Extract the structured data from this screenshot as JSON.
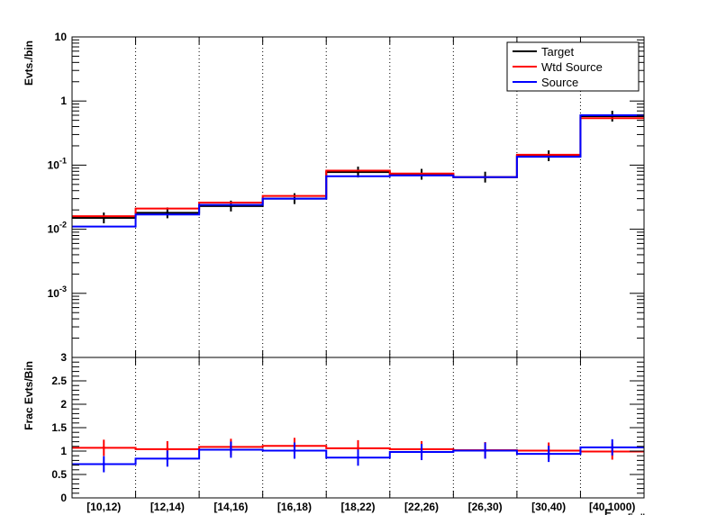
{
  "chart_data": [
    {
      "type": "histogram",
      "ylabel": "Evts./bin",
      "yscale": "log",
      "ylim": [
        0.0001,
        10
      ],
      "y_ticks": [
        {
          "v": 10,
          "t": "10"
        },
        {
          "v": 1,
          "t": "1"
        },
        {
          "v": 0.1,
          "t": "10<sup>-1</sup>"
        },
        {
          "v": 0.01,
          "t": "10<sup>-2</sup>"
        },
        {
          "v": 0.001,
          "t": "10<sup>-3</sup>"
        }
      ],
      "grid_x": true,
      "legend_position": "top-right",
      "categories": [
        "[10,12)",
        "[12,14)",
        "[14,16)",
        "[16,18)",
        "[18,22)",
        "[22,26)",
        "[26,30)",
        "[30,40)",
        "[40,1000)"
      ],
      "series": [
        {
          "name": "Target",
          "color": "#000000",
          "values": [
            0.015,
            0.018,
            0.023,
            0.03,
            0.078,
            0.072,
            0.065,
            0.14,
            0.58
          ],
          "errors": true
        },
        {
          "name": "Wtd Source",
          "color": "#ff0000",
          "values": [
            0.016,
            0.021,
            0.026,
            0.033,
            0.082,
            0.074,
            0.065,
            0.145,
            0.54
          ]
        },
        {
          "name": "Source",
          "color": "#0000ff",
          "values": [
            0.011,
            0.017,
            0.024,
            0.03,
            0.067,
            0.069,
            0.065,
            0.135,
            0.6
          ]
        }
      ]
    },
    {
      "type": "histogram",
      "ylabel": "Frac Evts/Bin",
      "ylim": [
        0,
        3
      ],
      "y_ticks": [
        {
          "v": 0,
          "t": "0"
        },
        {
          "v": 0.5,
          "t": "0.5"
        },
        {
          "v": 1,
          "t": "1"
        },
        {
          "v": 1.5,
          "t": "1.5"
        },
        {
          "v": 2,
          "t": "2"
        },
        {
          "v": 2.5,
          "t": "2.5"
        },
        {
          "v": 3,
          "t": "3"
        }
      ],
      "grid_x": true,
      "xlabel": "E_maxFrell",
      "categories": [
        "[10,12)",
        "[12,14)",
        "[14,16)",
        "[16,18)",
        "[18,22)",
        "[22,26)",
        "[26,30)",
        "[30,40)",
        "[40,1000)"
      ],
      "series": [
        {
          "name": "Wtd Source",
          "color": "#ff0000",
          "values": [
            1.07,
            1.04,
            1.09,
            1.11,
            1.06,
            1.04,
            1.02,
            1.01,
            0.99
          ],
          "errors": true
        },
        {
          "name": "Source",
          "color": "#0000ff",
          "values": [
            0.72,
            0.84,
            1.03,
            1.01,
            0.86,
            0.98,
            1.01,
            0.94,
            1.08
          ],
          "errors": true
        }
      ]
    }
  ]
}
